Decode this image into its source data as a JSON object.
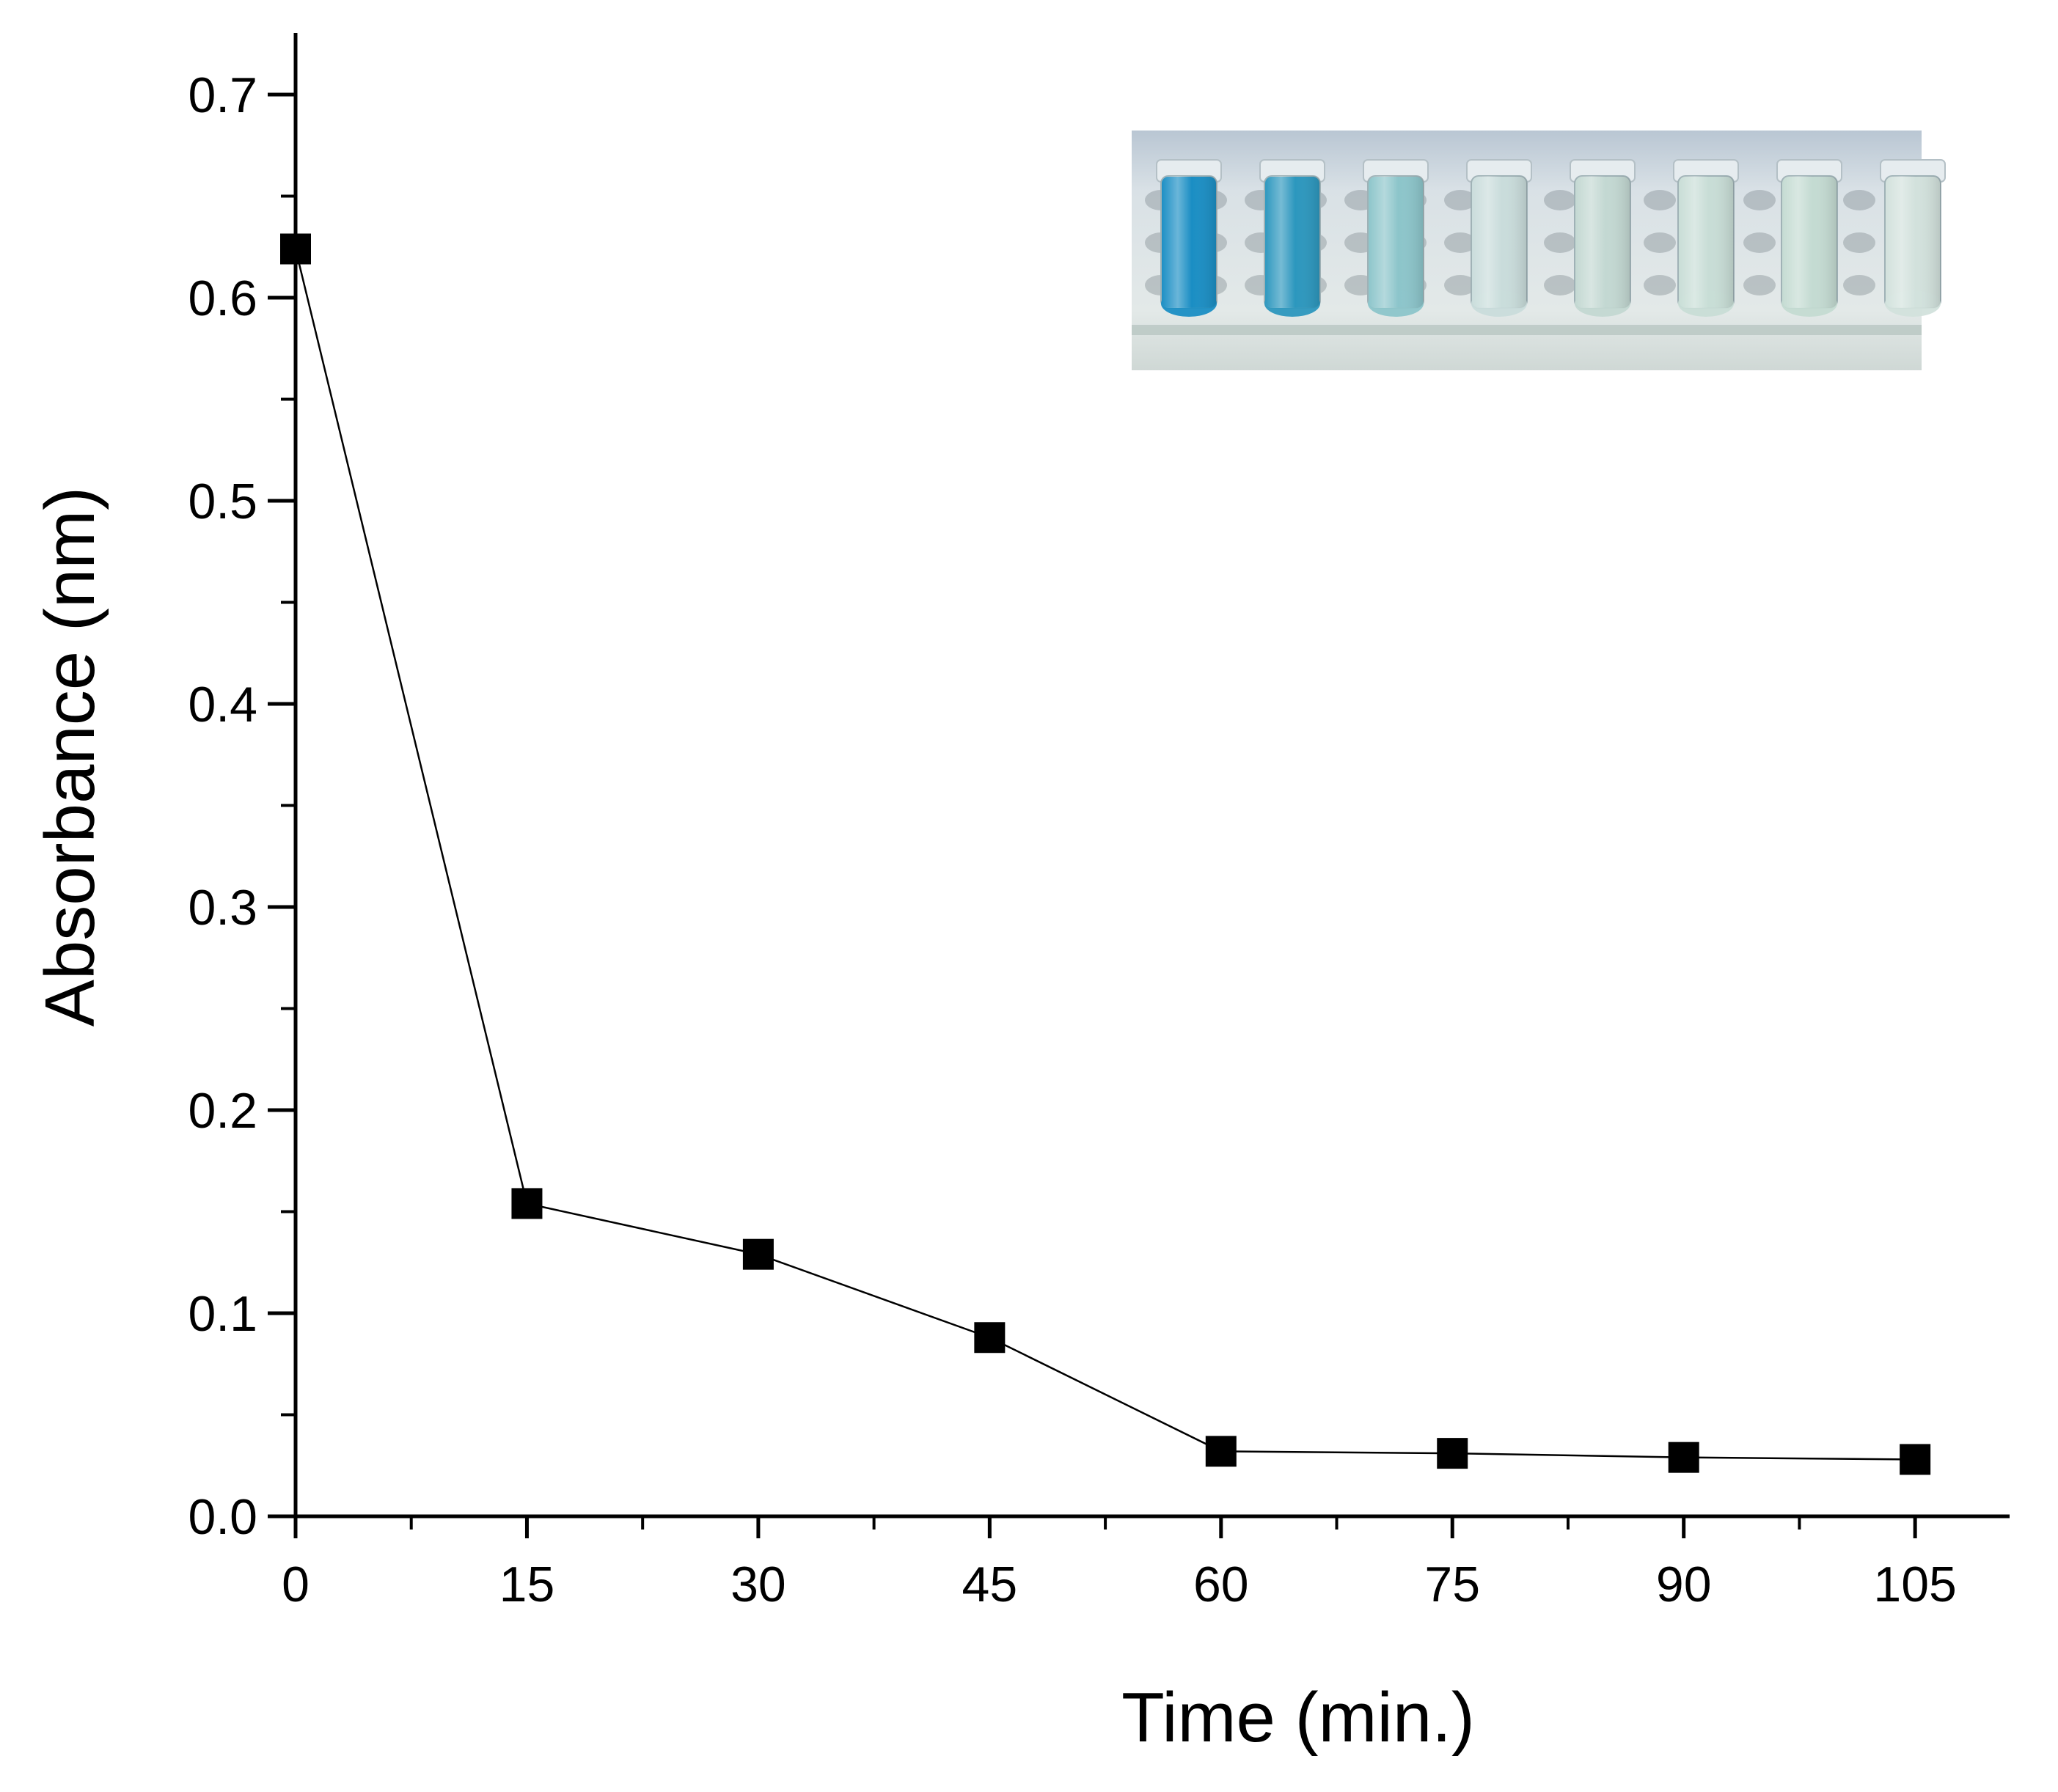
{
  "chart_data": {
    "type": "line",
    "title": "",
    "xlabel": "Time (min.)",
    "ylabel": "Absorbance (nm)",
    "x": [
      0,
      15,
      30,
      45,
      60,
      75,
      90,
      105
    ],
    "series": [
      {
        "values": [
          0.624,
          0.154,
          0.129,
          0.088,
          0.032,
          0.031,
          0.029,
          0.028
        ],
        "marker": "square",
        "color": "#000000"
      }
    ],
    "xlim": [
      0,
      112
    ],
    "ylim": [
      0.0,
      0.73
    ],
    "x_ticks": [
      {
        "value": 0,
        "label": "0"
      },
      {
        "value": 15,
        "label": "15"
      },
      {
        "value": 30,
        "label": "30"
      },
      {
        "value": 45,
        "label": "45"
      },
      {
        "value": 60,
        "label": "60"
      },
      {
        "value": 75,
        "label": "75"
      },
      {
        "value": 90,
        "label": "90"
      },
      {
        "value": 105,
        "label": "105"
      }
    ],
    "y_ticks": [
      {
        "value": 0.0,
        "label": "0.0"
      },
      {
        "value": 0.1,
        "label": "0.1"
      },
      {
        "value": 0.2,
        "label": "0.2"
      },
      {
        "value": 0.3,
        "label": "0.3"
      },
      {
        "value": 0.4,
        "label": "0.4"
      },
      {
        "value": 0.5,
        "label": "0.5"
      },
      {
        "value": 0.6,
        "label": "0.6"
      },
      {
        "value": 0.7,
        "label": "0.7"
      }
    ],
    "x_minor_step": 7.5,
    "y_minor_step": 0.05,
    "grid": false,
    "legend": "none",
    "inset": {
      "kind": "photo",
      "position": "top-right",
      "vial_colors": [
        "#1a8ec4",
        "#2c97be",
        "#8cc5ca",
        "#c9dcdb",
        "#c3d8d2",
        "#c8ddd6",
        "#c4dbd2",
        "#d2e1dc"
      ]
    }
  }
}
